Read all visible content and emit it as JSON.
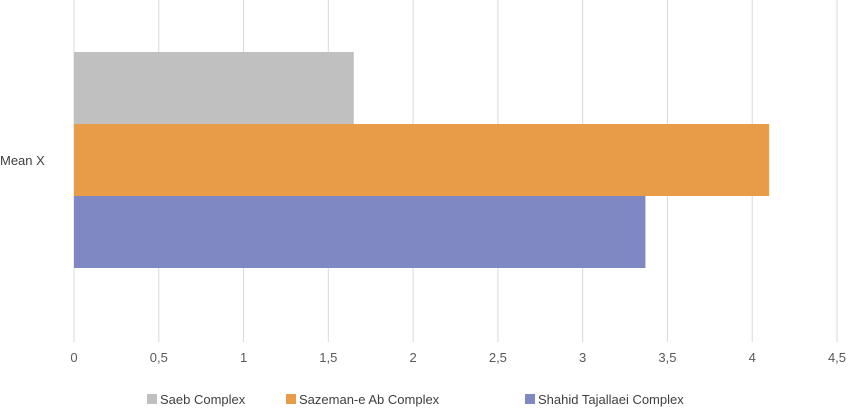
{
  "chart_data": {
    "type": "bar",
    "orientation": "horizontal",
    "categories": [
      "Mean X"
    ],
    "series": [
      {
        "name": "Saeb Complex",
        "values": [
          1.65
        ],
        "color": "#c0c0c0"
      },
      {
        "name": "Sazeman-e Ab Complex",
        "values": [
          4.1
        ],
        "color": "#e89c48"
      },
      {
        "name": "Shahid Tajallaei Complex",
        "values": [
          3.37
        ],
        "color": "#8088c4"
      }
    ],
    "x_ticks": [
      "0",
      "0,5",
      "1",
      "1,5",
      "2",
      "2,5",
      "3",
      "3,5",
      "4",
      "4,5"
    ],
    "xlim": [
      0,
      4.5
    ],
    "title": "",
    "xlabel": "",
    "ylabel": "",
    "grid": "vertical",
    "legend_position": "bottom"
  }
}
